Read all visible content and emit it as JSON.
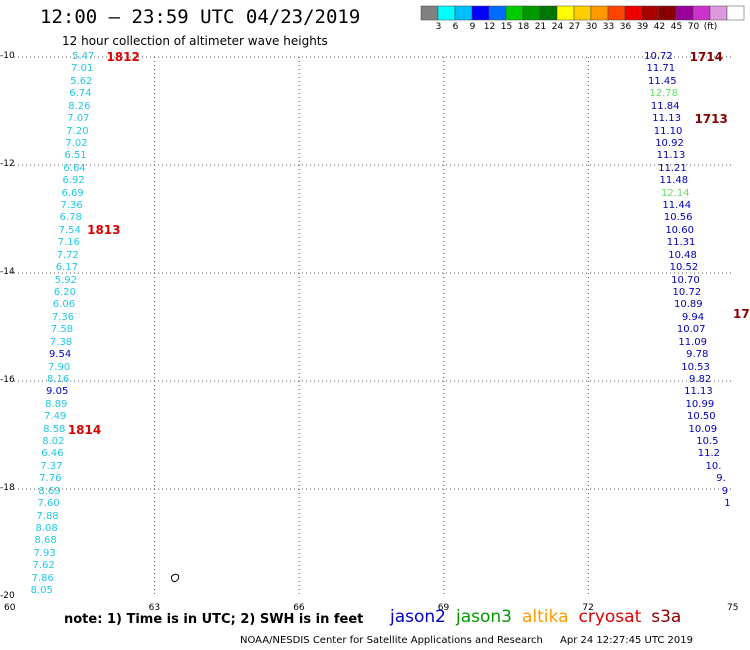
{
  "header": {
    "title": "12:00 – 23:59 UTC 04/23/2019",
    "subtitle": "12 hour collection of altimeter wave heights"
  },
  "color_scale": {
    "colors": [
      "#808080",
      "#00ffff",
      "#00bfff",
      "#0000ff",
      "#006bff",
      "#00cc00",
      "#009900",
      "#007700",
      "#ffff00",
      "#ffcc00",
      "#ff9900",
      "#ff4400",
      "#ee0000",
      "#aa0000",
      "#880000",
      "#990099",
      "#cc33cc",
      "#dd99dd",
      "#ffffff"
    ],
    "labels": [
      "3",
      "6",
      "9",
      "12",
      "15",
      "18",
      "21",
      "24",
      "27",
      "30",
      "33",
      "36",
      "39",
      "42",
      "45",
      "70",
      "(ft)"
    ]
  },
  "map": {
    "lat_labels": [
      "-10",
      "-12",
      "-14",
      "-16",
      "-18",
      "-20"
    ],
    "lon_labels": [
      "60",
      "63",
      "66",
      "69",
      "72",
      "75"
    ],
    "passes": [
      {
        "label": "1812",
        "color": "#dd0000",
        "lat": -10.0,
        "lon": 62.0
      },
      {
        "label": "1813",
        "color": "#dd0000",
        "lat": -13.2,
        "lon": 61.6
      },
      {
        "label": "1814",
        "color": "#dd0000",
        "lat": -16.9,
        "lon": 61.2
      },
      {
        "label": "1714",
        "color": "#880000",
        "lat": -10.0,
        "lon": 74.1
      },
      {
        "label": "1713",
        "color": "#880000",
        "lat": -11.15,
        "lon": 74.2
      },
      {
        "label": "17",
        "color": "#880000",
        "lat": -14.75,
        "lon": 75.0
      }
    ],
    "track_left": {
      "color": "#1ec8e6",
      "points": [
        {
          "lat": -10.0,
          "lon": 61.75,
          "v": "5.47"
        },
        {
          "lat": -10.23,
          "lon": 61.73,
          "v": "7.01"
        },
        {
          "lat": -10.46,
          "lon": 61.71,
          "v": "5.62"
        },
        {
          "lat": -10.69,
          "lon": 61.69,
          "v": "6.74"
        },
        {
          "lat": -10.92,
          "lon": 61.67,
          "v": "8.26"
        },
        {
          "lat": -11.15,
          "lon": 61.65,
          "v": "7.07"
        },
        {
          "lat": -11.38,
          "lon": 61.63,
          "v": "7.20"
        },
        {
          "lat": -11.61,
          "lon": 61.61,
          "v": "7.02"
        },
        {
          "lat": -11.84,
          "lon": 61.59,
          "v": "6.51"
        },
        {
          "lat": -12.07,
          "lon": 61.57,
          "v": "6.64"
        },
        {
          "lat": -12.3,
          "lon": 61.55,
          "v": "6.92"
        },
        {
          "lat": -12.53,
          "lon": 61.53,
          "v": "6.69"
        },
        {
          "lat": -12.76,
          "lon": 61.51,
          "v": "7.36"
        },
        {
          "lat": -12.99,
          "lon": 61.49,
          "v": "6.78"
        },
        {
          "lat": -13.22,
          "lon": 61.47,
          "v": "7.54"
        },
        {
          "lat": -13.45,
          "lon": 61.45,
          "v": "7.16"
        },
        {
          "lat": -13.68,
          "lon": 61.43,
          "v": "7.72"
        },
        {
          "lat": -13.91,
          "lon": 61.41,
          "v": "6.17"
        },
        {
          "lat": -14.14,
          "lon": 61.39,
          "v": "5.92"
        },
        {
          "lat": -14.37,
          "lon": 61.37,
          "v": "6.20"
        },
        {
          "lat": -14.6,
          "lon": 61.35,
          "v": "6.06"
        },
        {
          "lat": -14.83,
          "lon": 61.33,
          "v": "7.36"
        },
        {
          "lat": -15.06,
          "lon": 61.31,
          "v": "7.58"
        },
        {
          "lat": -15.29,
          "lon": 61.29,
          "v": "7.38"
        },
        {
          "lat": -15.52,
          "lon": 61.27,
          "v": "9.54",
          "c": "#0000cc"
        },
        {
          "lat": -15.75,
          "lon": 61.25,
          "v": "7.90"
        },
        {
          "lat": -15.98,
          "lon": 61.23,
          "v": "8.16"
        },
        {
          "lat": -16.21,
          "lon": 61.21,
          "v": "9.05",
          "c": "#0000cc"
        },
        {
          "lat": -16.44,
          "lon": 61.19,
          "v": "8.89"
        },
        {
          "lat": -16.67,
          "lon": 61.17,
          "v": "7.49"
        },
        {
          "lat": -16.9,
          "lon": 61.15,
          "v": "8.58"
        },
        {
          "lat": -17.13,
          "lon": 61.13,
          "v": "8.02"
        },
        {
          "lat": -17.36,
          "lon": 61.11,
          "v": "6.46"
        },
        {
          "lat": -17.59,
          "lon": 61.09,
          "v": "7.37"
        },
        {
          "lat": -17.82,
          "lon": 61.07,
          "v": "7.76"
        },
        {
          "lat": -18.05,
          "lon": 61.05,
          "v": "8.69"
        },
        {
          "lat": -18.28,
          "lon": 61.03,
          "v": "7.60"
        },
        {
          "lat": -18.51,
          "lon": 61.01,
          "v": "7.88"
        },
        {
          "lat": -18.74,
          "lon": 60.99,
          "v": "8.08"
        },
        {
          "lat": -18.97,
          "lon": 60.97,
          "v": "8.68"
        },
        {
          "lat": -19.2,
          "lon": 60.95,
          "v": "7.93"
        },
        {
          "lat": -19.43,
          "lon": 60.93,
          "v": "7.62"
        },
        {
          "lat": -19.66,
          "lon": 60.91,
          "v": "7.86"
        },
        {
          "lat": -19.89,
          "lon": 60.89,
          "v": "8.05"
        }
      ]
    },
    "track_right": {
      "color": "#0000bb",
      "points": [
        {
          "lat": -10.0,
          "lon": 73.75,
          "v": "10.72"
        },
        {
          "lat": -10.23,
          "lon": 73.8,
          "v": "11.71"
        },
        {
          "lat": -10.46,
          "lon": 73.83,
          "v": "11.45"
        },
        {
          "lat": -10.69,
          "lon": 73.86,
          "v": "12.78",
          "c": "#66dd66"
        },
        {
          "lat": -10.92,
          "lon": 73.89,
          "v": "11.84"
        },
        {
          "lat": -11.15,
          "lon": 73.92,
          "v": "11.13"
        },
        {
          "lat": -11.38,
          "lon": 73.95,
          "v": "11.10"
        },
        {
          "lat": -11.61,
          "lon": 73.98,
          "v": "10.92"
        },
        {
          "lat": -11.84,
          "lon": 74.01,
          "v": "11.13"
        },
        {
          "lat": -12.07,
          "lon": 74.04,
          "v": "11.21"
        },
        {
          "lat": -12.3,
          "lon": 74.07,
          "v": "11.48"
        },
        {
          "lat": -12.53,
          "lon": 74.1,
          "v": "12.14",
          "c": "#66dd66"
        },
        {
          "lat": -12.76,
          "lon": 74.13,
          "v": "11.44"
        },
        {
          "lat": -12.99,
          "lon": 74.16,
          "v": "10.56"
        },
        {
          "lat": -13.22,
          "lon": 74.19,
          "v": "10.60"
        },
        {
          "lat": -13.45,
          "lon": 74.22,
          "v": "11.31"
        },
        {
          "lat": -13.68,
          "lon": 74.25,
          "v": "10.48"
        },
        {
          "lat": -13.91,
          "lon": 74.28,
          "v": "10.52"
        },
        {
          "lat": -14.14,
          "lon": 74.31,
          "v": "10.70"
        },
        {
          "lat": -14.37,
          "lon": 74.34,
          "v": "10.72"
        },
        {
          "lat": -14.6,
          "lon": 74.37,
          "v": "10.89"
        },
        {
          "lat": -14.83,
          "lon": 74.4,
          "v": "9.94"
        },
        {
          "lat": -15.06,
          "lon": 74.43,
          "v": "10.07"
        },
        {
          "lat": -15.29,
          "lon": 74.46,
          "v": "11.09"
        },
        {
          "lat": -15.52,
          "lon": 74.49,
          "v": "9.78"
        },
        {
          "lat": -15.75,
          "lon": 74.52,
          "v": "10.53"
        },
        {
          "lat": -15.98,
          "lon": 74.55,
          "v": "9.82"
        },
        {
          "lat": -16.21,
          "lon": 74.58,
          "v": "11.13"
        },
        {
          "lat": -16.44,
          "lon": 74.61,
          "v": "10.99"
        },
        {
          "lat": -16.67,
          "lon": 74.64,
          "v": "10.50"
        },
        {
          "lat": -16.9,
          "lon": 74.67,
          "v": "10.09"
        },
        {
          "lat": -17.13,
          "lon": 74.7,
          "v": "10.5"
        },
        {
          "lat": -17.36,
          "lon": 74.73,
          "v": "11.2"
        },
        {
          "lat": -17.59,
          "lon": 74.76,
          "v": "10."
        },
        {
          "lat": -17.82,
          "lon": 74.85,
          "v": "9."
        },
        {
          "lat": -18.05,
          "lon": 74.9,
          "v": "9"
        },
        {
          "lat": -18.28,
          "lon": 74.95,
          "v": "1"
        }
      ]
    }
  },
  "note": "note:  1) Time is in UTC;  2) SWH is in feet",
  "legend": [
    {
      "name": "jason2",
      "color": "#0000cc"
    },
    {
      "name": "jason3",
      "color": "#009900"
    },
    {
      "name": "altika",
      "color": "#ff9900"
    },
    {
      "name": "cryosat",
      "color": "#dd0000"
    },
    {
      "name": "s3a",
      "color": "#880000"
    }
  ],
  "footer": {
    "credit": "NOAA/NESDIS Center for Satellite Applications and Research",
    "timestamp": "Apr 24 12:27:45 UTC 2019"
  }
}
